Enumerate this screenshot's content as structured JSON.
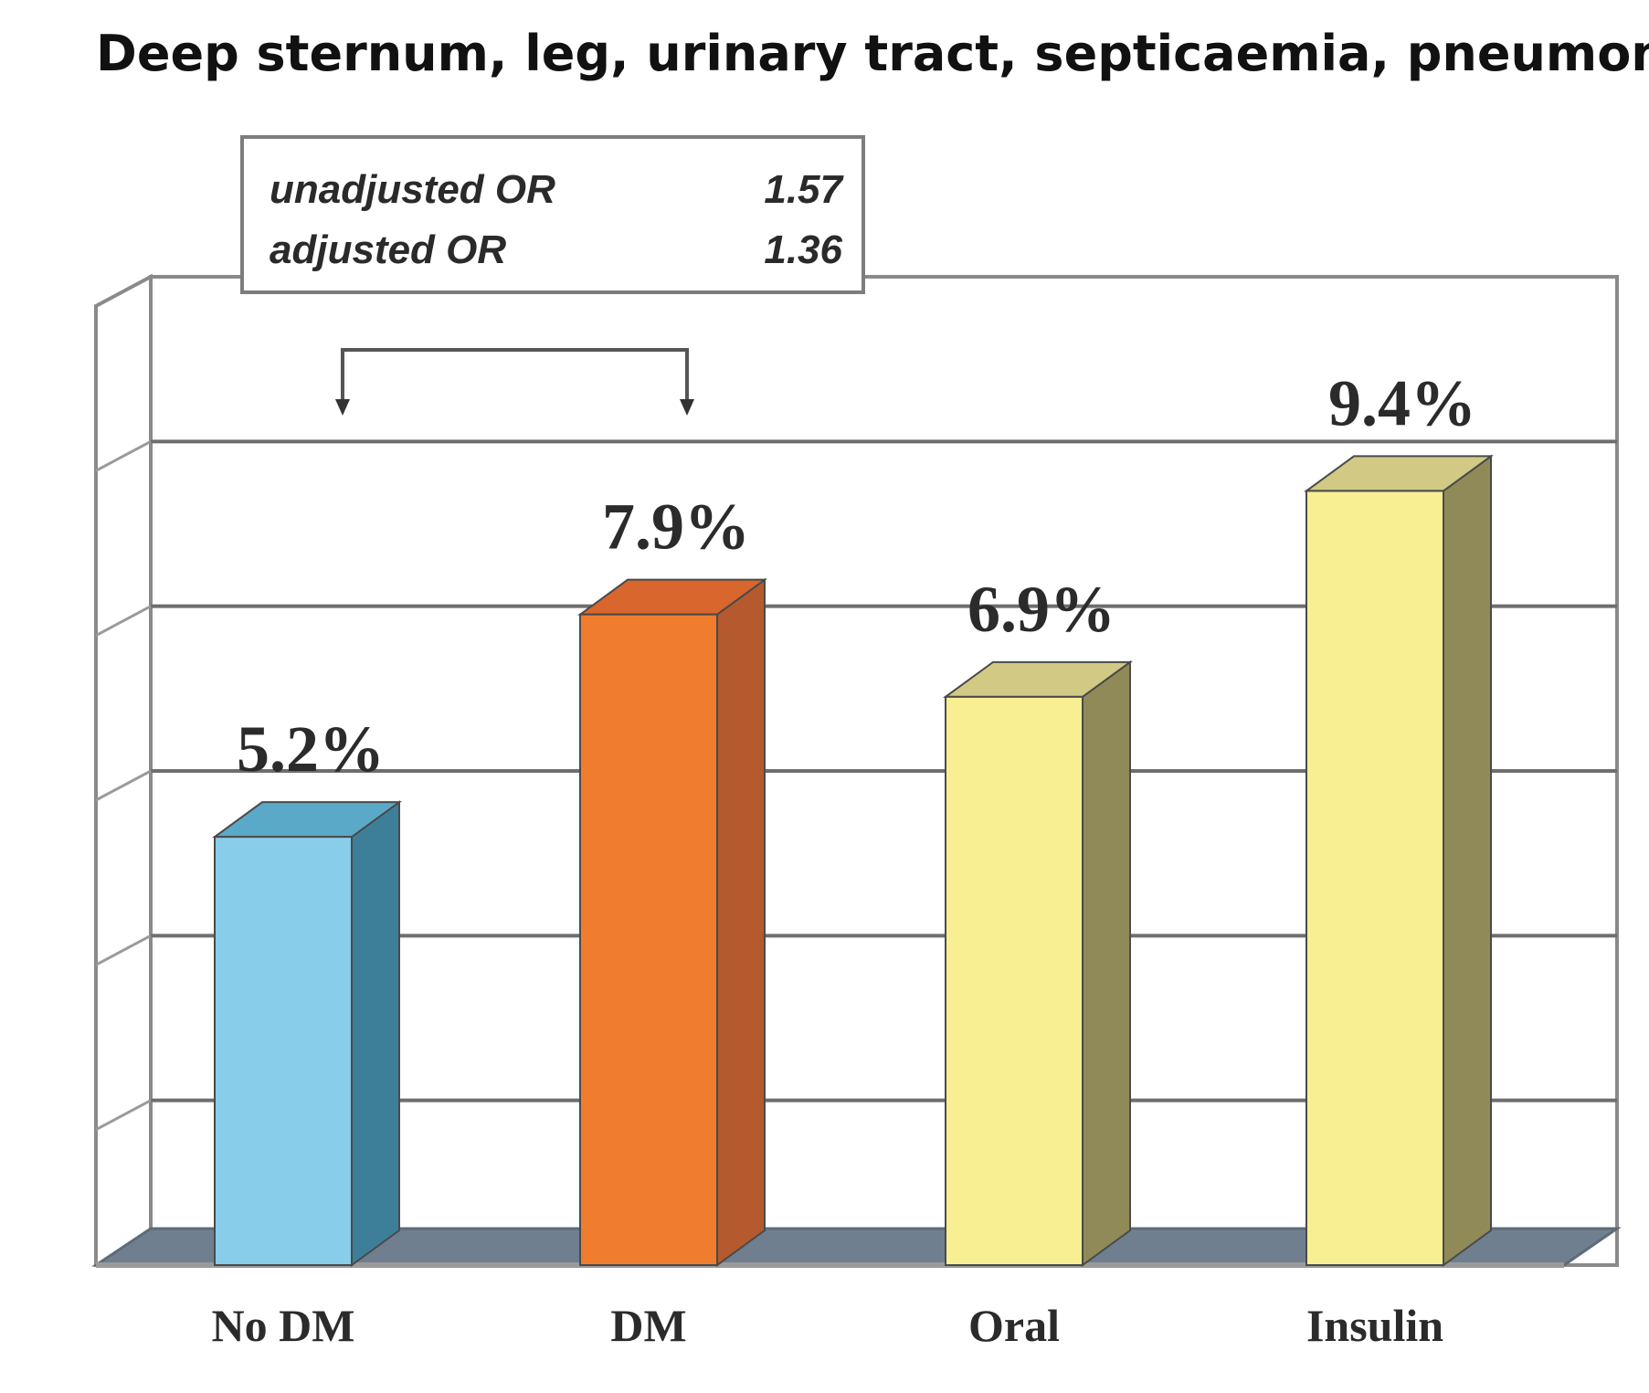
{
  "chart_data": {
    "type": "bar",
    "title": "Deep sternum, leg, urinary tract, septicaemia, pneumonia",
    "categories": [
      "No DM",
      "DM",
      "Oral",
      "Insulin"
    ],
    "values": [
      5.2,
      7.9,
      6.9,
      9.4
    ],
    "value_labels": [
      "5.2%",
      "7.9%",
      "6.9%",
      "9.4%"
    ],
    "ylim": [
      0,
      12
    ],
    "grid": true,
    "xlabel": "",
    "ylabel": "",
    "colors": {
      "No DM": {
        "front": "#88cdea",
        "side": "#3d7f98",
        "top": "#5aa9c9"
      },
      "DM": {
        "front": "#f07d2e",
        "side": "#b45a2e",
        "top": "#d9662c"
      },
      "Oral": {
        "front": "#f8ee92",
        "side": "#8f8a58",
        "top": "#d2c985"
      },
      "Insulin": {
        "front": "#f8ee92",
        "side": "#8f8a58",
        "top": "#d2c985"
      }
    },
    "annotation": {
      "comparison": [
        "No DM",
        "DM"
      ],
      "rows": [
        {
          "label": "unadjusted OR",
          "value": "1.57"
        },
        {
          "label": "adjusted OR",
          "value": "1.36"
        }
      ]
    }
  }
}
